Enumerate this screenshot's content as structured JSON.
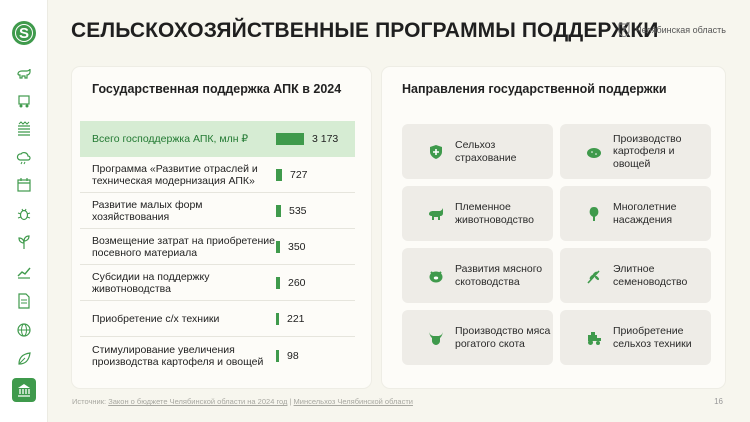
{
  "header": {
    "title": "СЕЛЬСКОХОЗЯЙСТВЕННЫЕ ПРОГРАММЫ ПОДДЕРЖКИ",
    "region": "Челябинская область"
  },
  "sidebar": {
    "logo_letter": "S",
    "icons": [
      "cow-icon",
      "tractor-icon",
      "field-icon",
      "weather-icon",
      "calendar-icon",
      "bug-icon",
      "plant-icon",
      "chart-icon",
      "document-icon",
      "globe-icon",
      "leaf-icon",
      "bank-icon"
    ],
    "active": "bank-icon"
  },
  "support": {
    "title": "Государственная поддержка АПК в 2024",
    "total_label": "Всего господдержка АПК, млн ₽",
    "total_value": "3 173",
    "items": [
      {
        "label": "Программа «Развитие отраслей и техническая модернизация АПК»",
        "value": "727"
      },
      {
        "label": "Развитие малых форм хозяйствования",
        "value": "535"
      },
      {
        "label": "Возмещение затрат на приобретение посевного материала",
        "value": "350"
      },
      {
        "label": "Субсидии на поддержку животноводства",
        "value": "260"
      },
      {
        "label": "Приобретение с/х техники",
        "value": "221"
      },
      {
        "label": "Стимулирование увеличения производства картофеля и овощей",
        "value": "98"
      }
    ]
  },
  "chart_data": {
    "type": "bar",
    "categories": [
      "Всего господдержка АПК, млн ₽",
      "Программа «Развитие отраслей и техническая модернизация АПК»",
      "Развитие малых форм хозяйствования",
      "Возмещение затрат на приобретение посевного материала",
      "Субсидии на поддержку животноводства",
      "Приобретение с/х техники",
      "Стимулирование увеличения производства картофеля и овощей"
    ],
    "values": [
      3173,
      727,
      535,
      350,
      260,
      221,
      98
    ],
    "title": "Государственная поддержка АПК в 2024",
    "color": "#3f9a4c"
  },
  "directions": {
    "title": "Направления государственной поддержки",
    "tiles": [
      {
        "label": "Сельхоз страхование",
        "icon": "shield-plus-icon"
      },
      {
        "label": "Производство картофеля и овощей",
        "icon": "potato-icon"
      },
      {
        "label": "Племенное животноводство",
        "icon": "livestock-icon"
      },
      {
        "label": "Многолетние насаждения",
        "icon": "tree-icon"
      },
      {
        "label": "Развития мясного скотоводства",
        "icon": "pig-icon"
      },
      {
        "label": "Элитное семеноводство",
        "icon": "wheat-icon"
      },
      {
        "label": "Производство мяса рогатого скота",
        "icon": "bull-icon"
      },
      {
        "label": "Приобретение сельхоз техники",
        "icon": "tractor-icon"
      }
    ]
  },
  "footer": {
    "prefix": "Источник:",
    "link1": "Закон о бюджете Челябинской области на 2024 год",
    "separator": "|",
    "link2": "Минсельхоз Челябинской области"
  },
  "page_number": "16",
  "colors": {
    "accent": "#3f9a4c",
    "highlight": "#d6ecd3",
    "tile_bg": "#eeece7",
    "background": "#f7f6ee"
  }
}
